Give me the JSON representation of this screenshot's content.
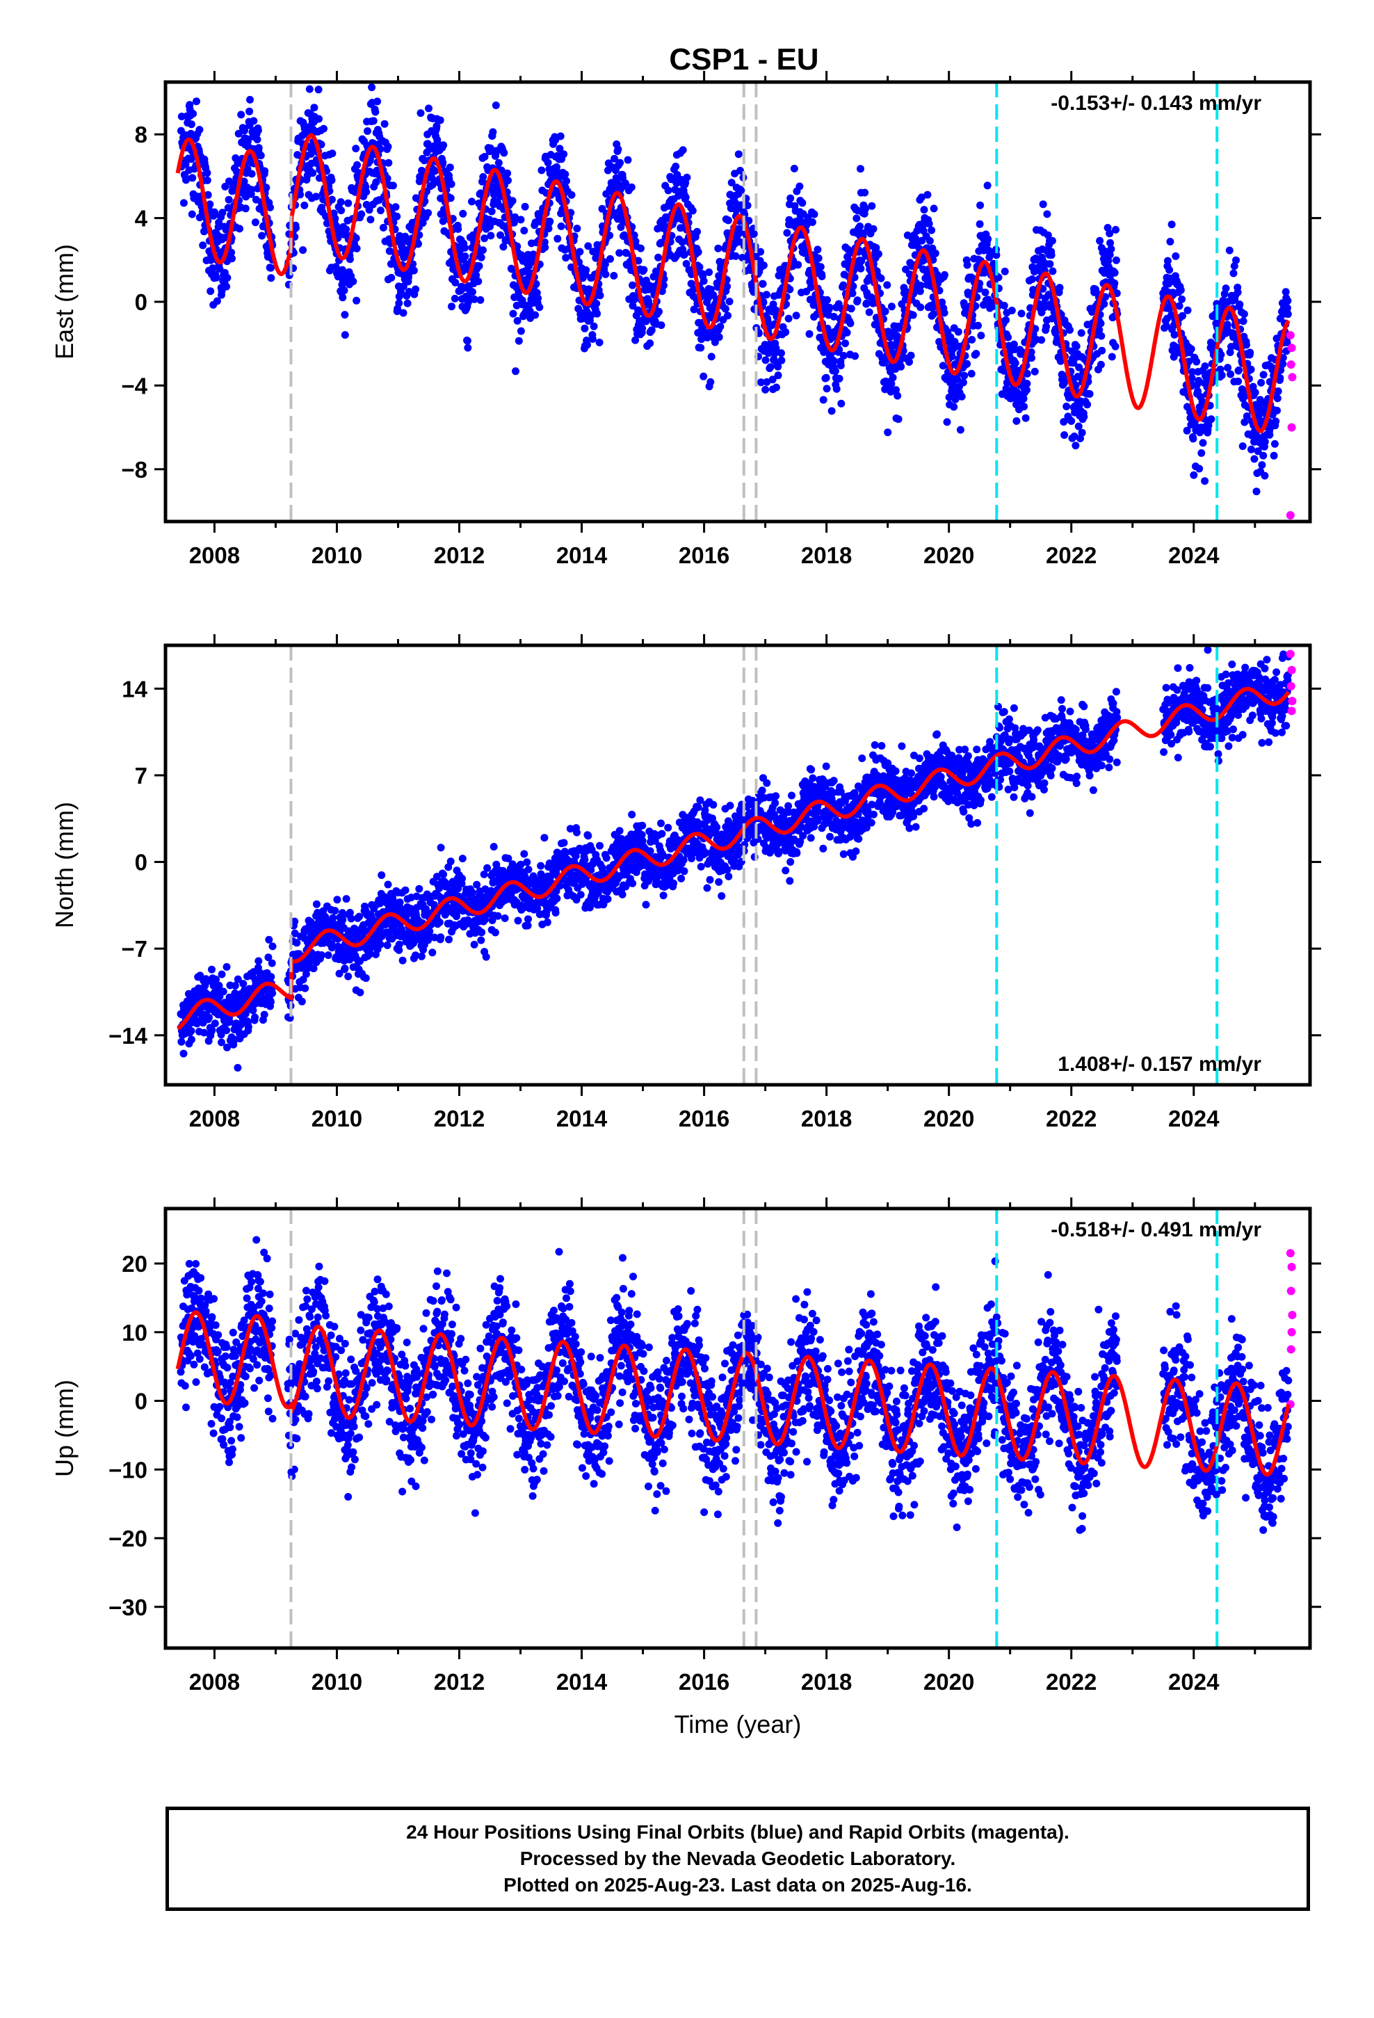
{
  "chart_data": {
    "title": "CSP1 - EU",
    "type": "scatter",
    "xlabel": "Time (year)",
    "xlim": [
      2007.2,
      2025.9
    ],
    "x_ticks": [
      2008,
      2010,
      2012,
      2014,
      2016,
      2018,
      2020,
      2022,
      2024
    ],
    "x_tick_labels": [
      "2008",
      "2010",
      "2012",
      "2014",
      "2016",
      "2018",
      "2020",
      "2022",
      "2024"
    ],
    "gray_dashed_lines_x": [
      2009.25,
      2016.65,
      2016.85
    ],
    "cyan_dashed_lines_x": [
      2020.78,
      2024.38
    ],
    "colors": {
      "final_orbits": "#0000ff",
      "rapid_orbits": "#ff00ff",
      "model": "#ff0000",
      "equipment_change": "#c0c0c0",
      "earthquake": "#00e5ee"
    },
    "panels": [
      {
        "ylabel": "East (mm)",
        "ylim": [
          -10.5,
          10.5
        ],
        "y_ticks": [
          -8,
          -4,
          0,
          4,
          8
        ],
        "y_tick_labels": [
          "−8",
          "−4",
          "0",
          "4",
          "8"
        ],
        "rate_text": "-0.153+/- 0.143 mm/yr",
        "rate_position": "top-right",
        "model": {
          "offset": 5.0,
          "rate": -0.55,
          "amp": 2.8,
          "phase": 2.6,
          "steps": [
            [
              2009.25,
              1.3
            ]
          ],
          "end_at": 2025.55
        },
        "scatter": {
          "noise": 1.3,
          "density_per_year": 200
        },
        "rapid_points": [
          [
            2025.58,
            -1.6
          ],
          [
            2025.6,
            -2.2
          ],
          [
            2025.59,
            -3.0
          ],
          [
            2025.61,
            -3.6
          ],
          [
            2025.6,
            -6.0
          ],
          [
            2025.58,
            -10.2
          ]
        ]
      },
      {
        "ylabel": "North (mm)",
        "ylim": [
          -18,
          17.5
        ],
        "y_ticks": [
          -14,
          -7,
          0,
          7,
          14
        ],
        "y_tick_labels": [
          "−14",
          "−7",
          "0",
          "7",
          "14"
        ],
        "rate_text": "1.408+/- 0.157 mm/yr",
        "rate_position": "bottom-right",
        "model": {
          "offset": -12.5,
          "rate": 1.3,
          "amp": 0.9,
          "phase": 1.0,
          "steps": [
            [
              2009.25,
              3.0
            ]
          ],
          "end_at": 2025.55
        },
        "scatter": {
          "noise": 1.3,
          "density_per_year": 200
        },
        "rapid_points": [
          [
            2025.58,
            16.8
          ],
          [
            2025.6,
            15.5
          ],
          [
            2025.59,
            14.2
          ],
          [
            2025.61,
            13.0
          ],
          [
            2025.6,
            12.2
          ]
        ]
      },
      {
        "ylabel": "Up (mm)",
        "ylim": [
          -36,
          28
        ],
        "y_ticks": [
          -30,
          -20,
          -10,
          0,
          10,
          20
        ],
        "y_tick_labels": [
          "−30",
          "−20",
          "−10",
          "0",
          "10",
          "20"
        ],
        "rate_text": "-0.518+/- 0.491 mm/yr",
        "rate_position": "top-right",
        "model": {
          "offset": 6.5,
          "rate": -0.55,
          "amp": 6.5,
          "phase": 1.9,
          "steps": [
            [
              2009.25,
              -1.0
            ]
          ],
          "end_at": 2025.55
        },
        "scatter": {
          "noise": 4.5,
          "density_per_year": 200
        },
        "rapid_points": [
          [
            2025.58,
            21.5
          ],
          [
            2025.6,
            19.5
          ],
          [
            2025.59,
            16.0
          ],
          [
            2025.61,
            12.5
          ],
          [
            2025.6,
            10.0
          ],
          [
            2025.59,
            7.5
          ],
          [
            2025.58,
            -0.5
          ]
        ]
      }
    ],
    "data_gaps": [
      [
        2022.75,
        2023.5
      ]
    ]
  },
  "footer": {
    "line1": "24 Hour Positions Using Final Orbits (blue) and Rapid Orbits (magenta).",
    "line2": "Processed by the Nevada Geodetic Laboratory.",
    "line3": "Plotted on 2025-Aug-23. Last data on 2025-Aug-16."
  }
}
